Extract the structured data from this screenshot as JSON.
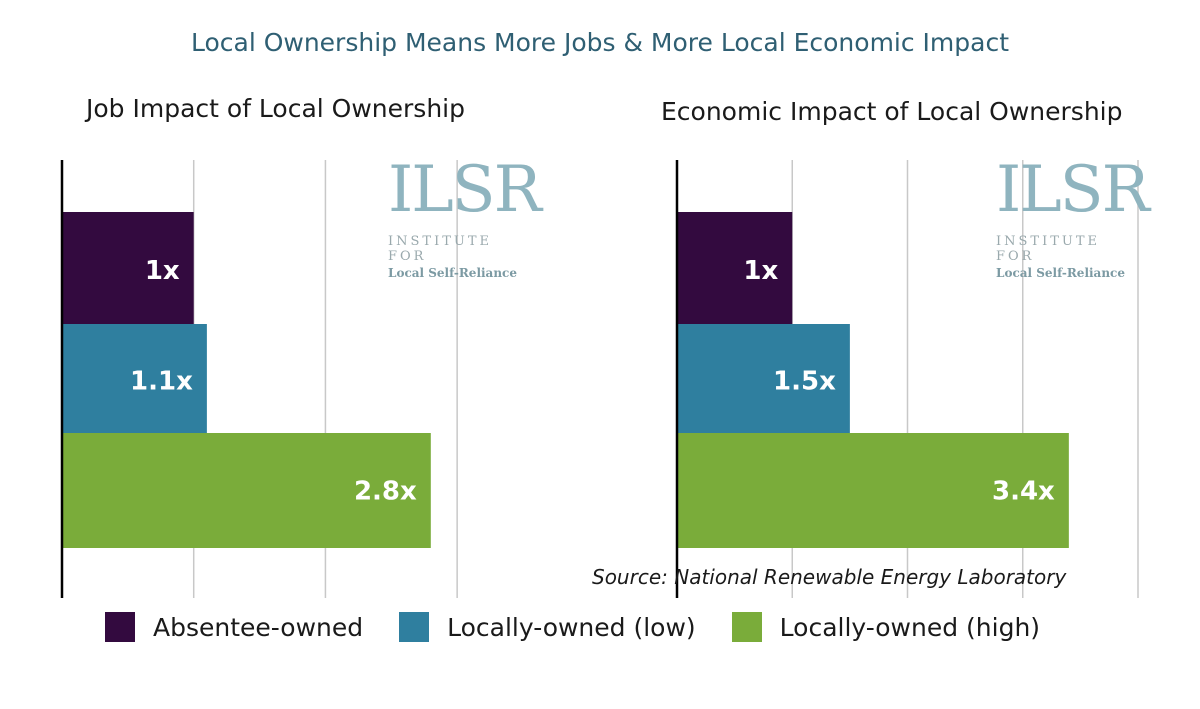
{
  "page_title": "Local Ownership Means More Jobs & More Local Economic Impact",
  "source": "Source: National Renewable Energy Laboratory",
  "logo": {
    "mark": "ILSR",
    "line1": "INSTITUTE FOR",
    "line2": "Local Self-Reliance"
  },
  "colors": {
    "absentee": "#330a3f",
    "local_low": "#2f7f9f",
    "local_high": "#7aac3a",
    "grid": "#c8c8c8",
    "axis": "#000000"
  },
  "legend": [
    {
      "label": "Absentee-owned",
      "color": "#330a3f"
    },
    {
      "label": "Locally-owned (low)",
      "color": "#2f7f9f"
    },
    {
      "label": "Locally-owned (high)",
      "color": "#7aac3a"
    }
  ],
  "chart_data": [
    {
      "type": "bar",
      "orientation": "horizontal",
      "title": "Job Impact of Local Ownership",
      "categories": [
        "Absentee-owned",
        "Locally-owned (low)",
        "Locally-owned (high)"
      ],
      "values": [
        1,
        1.1,
        2.8
      ],
      "data_labels": [
        "1x",
        "1.1x",
        "2.8x"
      ],
      "xlim": [
        0,
        3.5
      ],
      "grid": true,
      "legend": "bottom"
    },
    {
      "type": "bar",
      "orientation": "horizontal",
      "title": "Economic Impact of Local Ownership",
      "categories": [
        "Absentee-owned",
        "Locally-owned (low)",
        "Locally-owned (high)"
      ],
      "values": [
        1,
        1.5,
        3.4
      ],
      "data_labels": [
        "1x",
        "1.5x",
        "3.4x"
      ],
      "xlim": [
        0,
        4
      ],
      "grid": true,
      "legend": "bottom"
    }
  ]
}
